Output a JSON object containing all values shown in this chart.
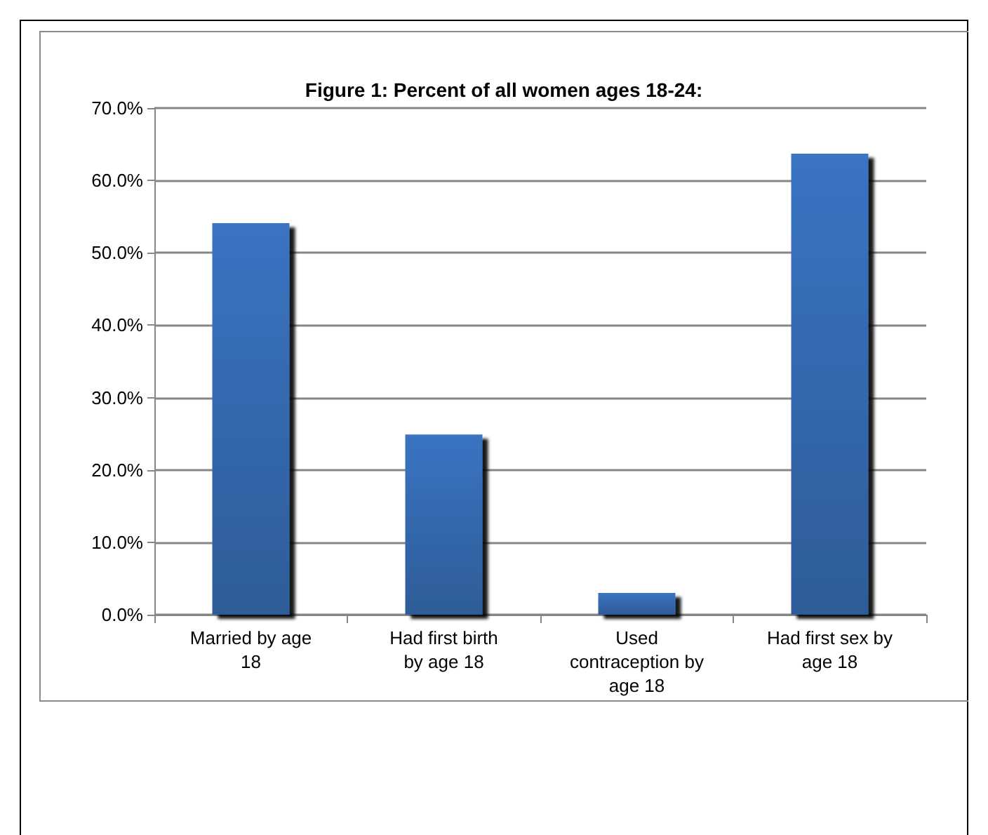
{
  "chart_data": {
    "type": "bar",
    "title": "Figure 1: Percent of all women ages 18-24:",
    "categories": [
      "Married by age 18",
      "Had first birth by age 18",
      "Used contraception by age 18",
      "Had first sex by age 18"
    ],
    "values": [
      54.1,
      24.9,
      3.0,
      63.7
    ],
    "color": "#3a74c2",
    "ylim": [
      0,
      70
    ],
    "yticks": [
      {
        "value": 0,
        "label": "0.0%"
      },
      {
        "value": 10,
        "label": "10.0%"
      },
      {
        "value": 20,
        "label": "20.0%"
      },
      {
        "value": 30,
        "label": "30.0%"
      },
      {
        "value": 40,
        "label": "40.0%"
      },
      {
        "value": 50,
        "label": "50.0%"
      },
      {
        "value": 60,
        "label": "60.0%"
      },
      {
        "value": 70,
        "label": "70.0%"
      }
    ],
    "grid": "y"
  }
}
